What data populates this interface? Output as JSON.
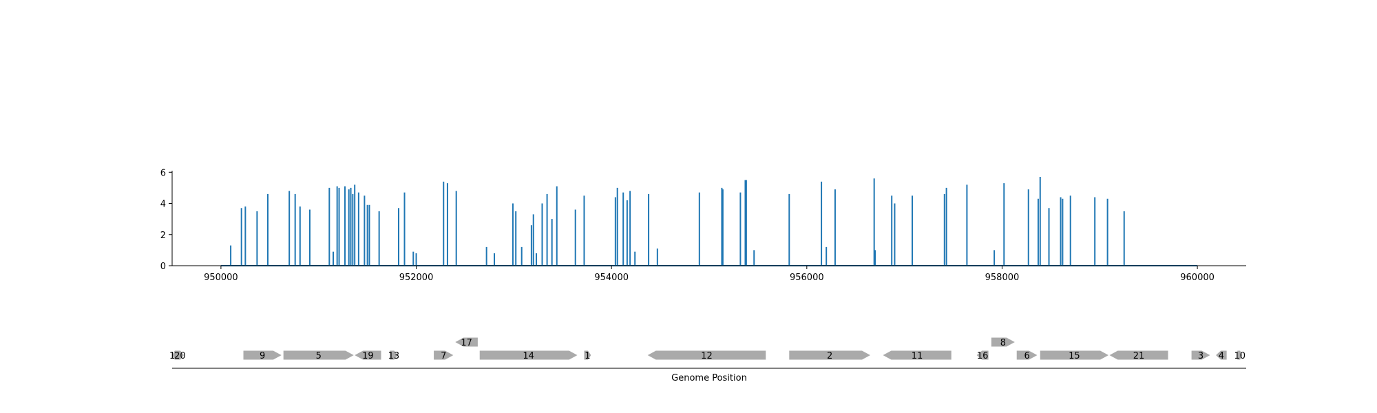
{
  "chart_data": [
    {
      "type": "bar",
      "subtype": "stem",
      "title": "",
      "xlabel": "",
      "ylabel": "",
      "xlim": [
        949500,
        960500
      ],
      "ylim": [
        0,
        6.1
      ],
      "xticks": [
        950000,
        952000,
        954000,
        956000,
        958000,
        960000
      ],
      "xtick_labels": [
        "950000",
        "952000",
        "954000",
        "956000",
        "958000",
        "960000"
      ],
      "yticks": [
        0,
        2,
        4,
        6
      ],
      "ytick_labels": [
        "0",
        "2",
        "4",
        "6"
      ],
      "baseline_range": [
        950000,
        960000
      ],
      "color": "#1f77b4",
      "grid": false,
      "legend": "none",
      "points": [
        [
          950100,
          1.3
        ],
        [
          950210,
          3.7
        ],
        [
          950250,
          3.8
        ],
        [
          950370,
          3.5
        ],
        [
          950480,
          4.6
        ],
        [
          950700,
          4.8
        ],
        [
          950760,
          4.6
        ],
        [
          950810,
          3.8
        ],
        [
          950910,
          3.6
        ],
        [
          951110,
          5.0
        ],
        [
          951150,
          0.9
        ],
        [
          951190,
          5.1
        ],
        [
          951210,
          5.0
        ],
        [
          951270,
          5.1
        ],
        [
          951310,
          4.9
        ],
        [
          951330,
          5.0
        ],
        [
          951350,
          4.6
        ],
        [
          951370,
          5.2
        ],
        [
          951410,
          4.7
        ],
        [
          951470,
          4.5
        ],
        [
          951500,
          3.9
        ],
        [
          951520,
          3.9
        ],
        [
          951620,
          3.5
        ],
        [
          951820,
          3.7
        ],
        [
          951880,
          4.7
        ],
        [
          951970,
          0.9
        ],
        [
          952000,
          0.8
        ],
        [
          952280,
          5.4
        ],
        [
          952320,
          5.3
        ],
        [
          952410,
          4.8
        ],
        [
          952720,
          1.2
        ],
        [
          952800,
          0.8
        ],
        [
          952990,
          4.0
        ],
        [
          953020,
          3.5
        ],
        [
          953080,
          1.2
        ],
        [
          953180,
          2.6
        ],
        [
          953200,
          3.3
        ],
        [
          953230,
          0.8
        ],
        [
          953290,
          4.0
        ],
        [
          953340,
          4.6
        ],
        [
          953390,
          3.0
        ],
        [
          953440,
          5.1
        ],
        [
          953630,
          3.6
        ],
        [
          953720,
          4.5
        ],
        [
          954040,
          4.4
        ],
        [
          954060,
          5.0
        ],
        [
          954120,
          4.7
        ],
        [
          954160,
          4.2
        ],
        [
          954190,
          4.8
        ],
        [
          954240,
          0.9
        ],
        [
          954380,
          4.6
        ],
        [
          954470,
          1.1
        ],
        [
          954900,
          4.7
        ],
        [
          955130,
          5.0
        ],
        [
          955140,
          4.9
        ],
        [
          955320,
          4.7
        ],
        [
          955370,
          5.5
        ],
        [
          955380,
          5.5
        ],
        [
          955460,
          1.0
        ],
        [
          955820,
          4.6
        ],
        [
          956150,
          5.4
        ],
        [
          956200,
          1.2
        ],
        [
          956290,
          4.9
        ],
        [
          956690,
          5.6
        ],
        [
          956700,
          1.0
        ],
        [
          956870,
          4.5
        ],
        [
          956900,
          4.0
        ],
        [
          957080,
          4.5
        ],
        [
          957410,
          4.6
        ],
        [
          957430,
          5.0
        ],
        [
          957640,
          5.2
        ],
        [
          957920,
          1.0
        ],
        [
          958020,
          5.3
        ],
        [
          958270,
          4.9
        ],
        [
          958370,
          4.3
        ],
        [
          958390,
          5.7
        ],
        [
          958480,
          3.7
        ],
        [
          958600,
          4.4
        ],
        [
          958620,
          4.3
        ],
        [
          958700,
          4.5
        ],
        [
          958950,
          4.4
        ],
        [
          959080,
          4.3
        ],
        [
          959250,
          3.5
        ]
      ]
    },
    {
      "type": "diagram",
      "subtype": "gene-track",
      "xlabel": "Genome Position",
      "xlim": [
        949500,
        960500
      ],
      "color": "#aaaaaa",
      "genes": [
        {
          "label": "18",
          "start": 949500,
          "end": 949560,
          "strand": "-",
          "row": 0
        },
        {
          "label": "20",
          "start": 949540,
          "end": 949620,
          "strand": "+",
          "row": 0
        },
        {
          "label": "9",
          "start": 950230,
          "end": 950620,
          "strand": "+",
          "row": 0
        },
        {
          "label": "5",
          "start": 950640,
          "end": 951360,
          "strand": "+",
          "row": 0
        },
        {
          "label": "19",
          "start": 951370,
          "end": 951640,
          "strand": "-",
          "row": 0
        },
        {
          "label": "13",
          "start": 951730,
          "end": 951810,
          "strand": "+",
          "row": 0
        },
        {
          "label": "7",
          "start": 952180,
          "end": 952380,
          "strand": "+",
          "row": 0
        },
        {
          "label": "17",
          "start": 952400,
          "end": 952630,
          "strand": "-",
          "row": 1
        },
        {
          "label": "14",
          "start": 952650,
          "end": 953650,
          "strand": "+",
          "row": 0
        },
        {
          "label": "1",
          "start": 953720,
          "end": 953790,
          "strand": "+",
          "row": 0
        },
        {
          "label": "12",
          "start": 954370,
          "end": 955580,
          "strand": "-",
          "row": 0
        },
        {
          "label": "2",
          "start": 955820,
          "end": 956650,
          "strand": "+",
          "row": 0
        },
        {
          "label": "11",
          "start": 956780,
          "end": 957480,
          "strand": "-",
          "row": 0
        },
        {
          "label": "16",
          "start": 957740,
          "end": 957860,
          "strand": "-",
          "row": 0
        },
        {
          "label": "8",
          "start": 957890,
          "end": 958130,
          "strand": "+",
          "row": 1
        },
        {
          "label": "6",
          "start": 958150,
          "end": 958360,
          "strand": "+",
          "row": 0
        },
        {
          "label": "15",
          "start": 958390,
          "end": 959090,
          "strand": "+",
          "row": 0
        },
        {
          "label": "21",
          "start": 959100,
          "end": 959700,
          "strand": "-",
          "row": 0
        },
        {
          "label": "3",
          "start": 959940,
          "end": 960130,
          "strand": "+",
          "row": 0
        },
        {
          "label": "4",
          "start": 960190,
          "end": 960300,
          "strand": "-",
          "row": 0
        },
        {
          "label": "10",
          "start": 960410,
          "end": 960460,
          "strand": "+",
          "row": 0
        }
      ]
    }
  ]
}
